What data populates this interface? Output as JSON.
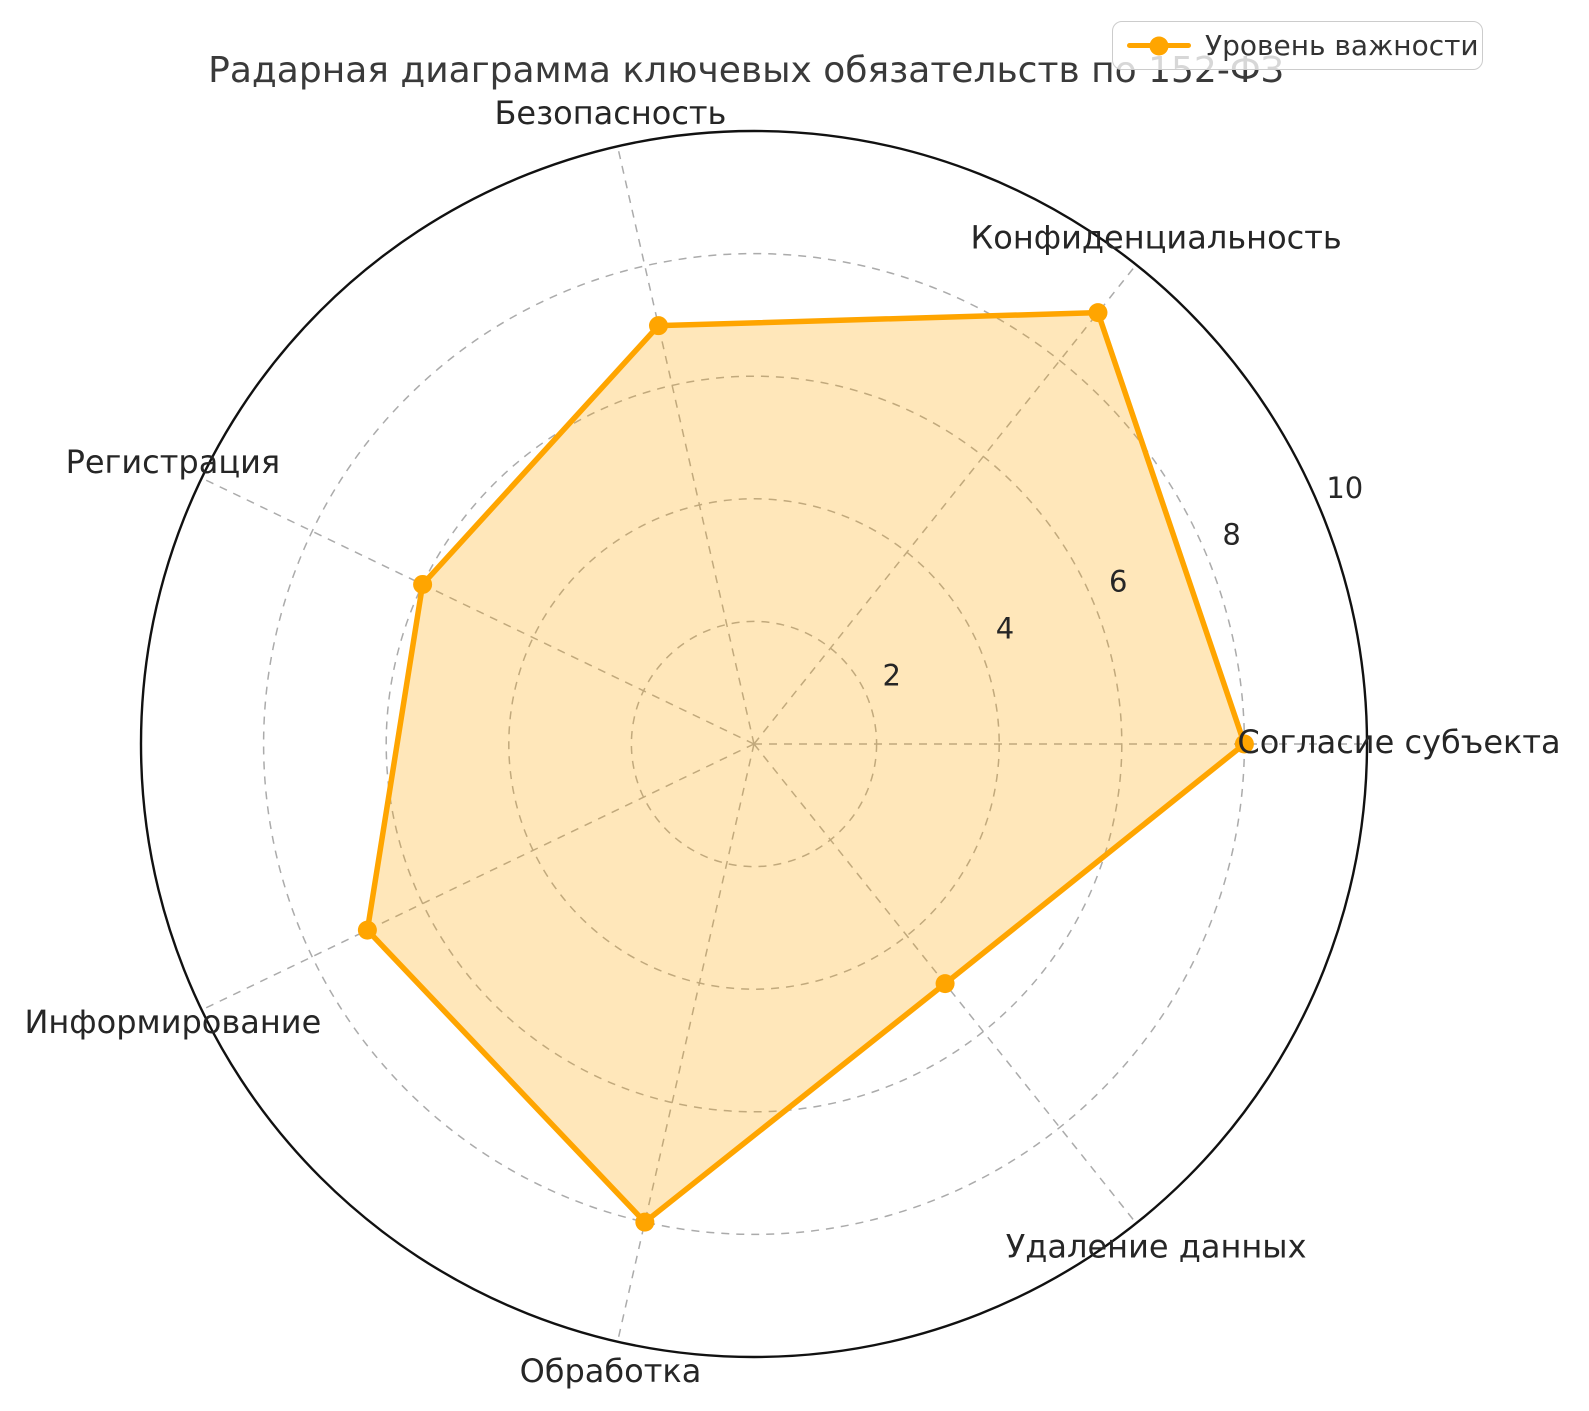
{
  "title": "Радарная диаграмма ключевых обязательств по 152-ФЗ",
  "legend": {
    "label": "Уровень важности",
    "position": "upper-right"
  },
  "chart_data": {
    "type": "radar",
    "title": "Радарная диаграмма ключевых обязательств по 152-ФЗ",
    "categories": [
      "Согласие субъекта",
      "Конфиденциальность",
      "Безопасность",
      "Регистрация",
      "Информирование",
      "Обработка",
      "Удаление данных"
    ],
    "series": [
      {
        "name": "Уровень важности",
        "values": [
          8,
          9,
          7,
          6,
          7,
          8,
          5
        ]
      }
    ],
    "angles_deg": [
      0,
      51.43,
      102.86,
      154.29,
      205.71,
      257.14,
      308.57
    ],
    "direction": "counterclockwise",
    "r_ticks": [
      2,
      4,
      6,
      8,
      10
    ],
    "r_max": 10,
    "r_tick_label_angle_deg": 22.5,
    "grid": "dashed",
    "legend_entries": [
      "Уровень важности"
    ],
    "colors": {
      "series_line": "#FFA500",
      "series_fill": "rgba(255,165,0,0.27)",
      "marker": "#FFA500",
      "grid_line": "#ababab",
      "outer_circle": "#111111",
      "tick_label": "#262626",
      "category_label": "#262626",
      "title": "#3a3a3a",
      "legend_border": "#cccccc",
      "legend_text": "#333333"
    }
  }
}
